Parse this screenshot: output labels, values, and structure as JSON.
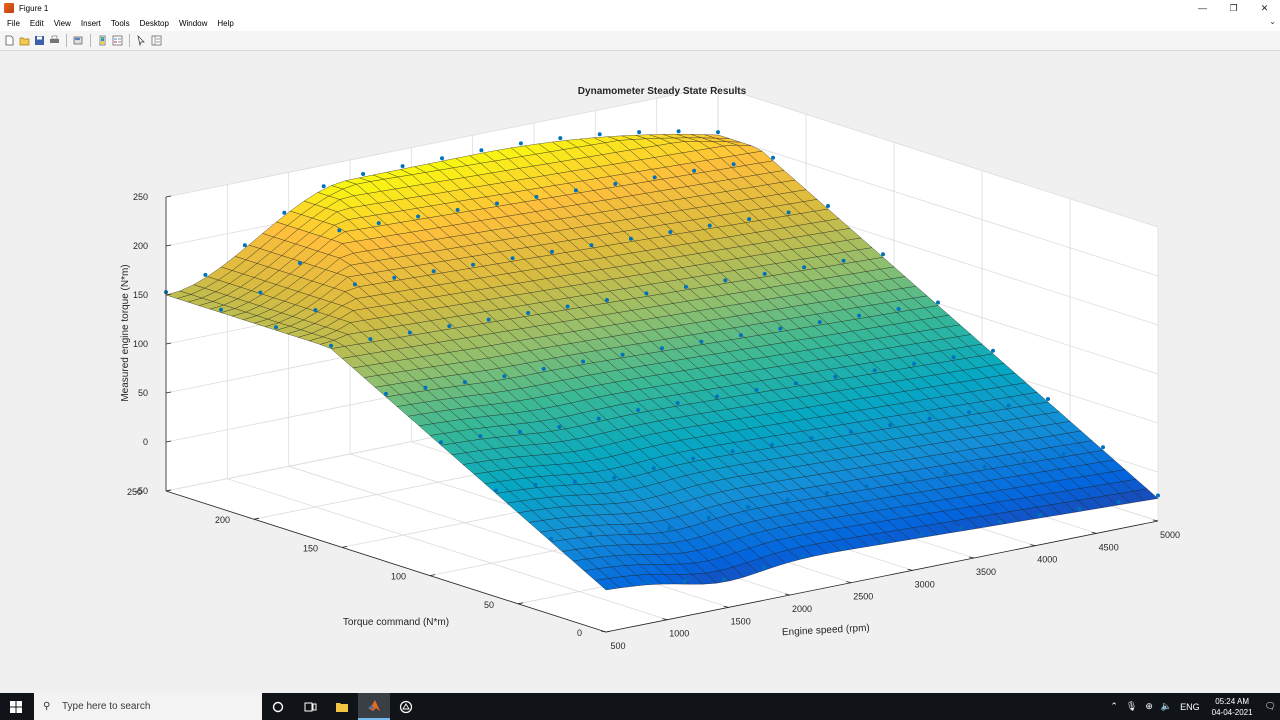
{
  "window": {
    "title": "Figure 1",
    "controls": {
      "minimize": "—",
      "maximize": "❐",
      "close": "✕"
    }
  },
  "menu": [
    "File",
    "Edit",
    "View",
    "Insert",
    "Tools",
    "Desktop",
    "Window",
    "Help"
  ],
  "toolbar": {
    "icons": [
      "new-figure-icon",
      "open-file-icon",
      "save-icon",
      "print-icon",
      "print-preview-icon",
      "insert-colorbar-icon",
      "insert-legend-icon",
      "edit-plot-icon",
      "plot-browser-icon"
    ]
  },
  "chart_data": {
    "type": "surface",
    "title": "Dynamometer Steady State Results",
    "xlabel": "Engine speed (rpm)",
    "ylabel": "Torque command (N*m)",
    "zlabel": "Measured engine torque (N*m)",
    "xlim": [
      500,
      5000
    ],
    "ylim": [
      0,
      250
    ],
    "zlim": [
      -50,
      250
    ],
    "x_ticks": [
      "500",
      "1000",
      "1500",
      "2000",
      "2500",
      "3000",
      "3500",
      "4000",
      "4500",
      "5000"
    ],
    "y_ticks": [
      "0",
      "50",
      "100",
      "150",
      "200",
      "250"
    ],
    "z_ticks": [
      "-50",
      "0",
      "50",
      "100",
      "150",
      "200",
      "250"
    ],
    "colormap": "parula",
    "grid": true,
    "surface_color": "#1a1a1a",
    "marker_color": "#0072bd",
    "description_note": ""
  },
  "taskbar": {
    "search_placeholder": "Type here to search",
    "language": "ENG",
    "time": "05:24 AM",
    "date": "04-04-2021"
  }
}
